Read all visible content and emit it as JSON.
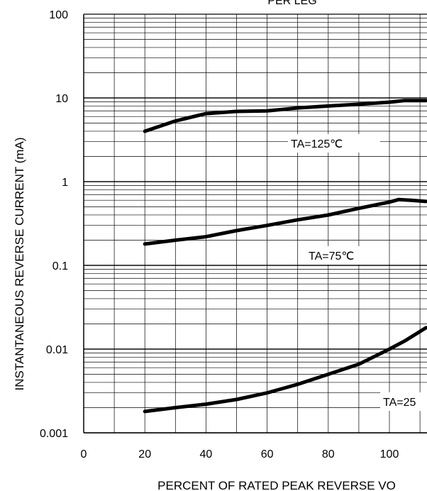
{
  "chart_data": {
    "type": "line",
    "title": "PER LEG",
    "xlabel": "PERCENT OF RATED PEAK REVERSE VO",
    "ylabel": "INSTANTANEOUS REVERSE CURRENT (mA)",
    "xlim": [
      0,
      112
    ],
    "ylim": [
      0.001,
      100
    ],
    "yscale": "log",
    "x_ticks": [
      "0",
      "20",
      "40",
      "60",
      "80",
      "100"
    ],
    "x_tick_values": [
      0,
      20,
      40,
      60,
      80,
      100
    ],
    "y_ticks": [
      "0.001",
      "0.01",
      "0.1",
      "1",
      "10",
      "100"
    ],
    "y_tick_values": [
      0.001,
      0.01,
      0.1,
      1,
      10,
      100
    ],
    "grid": true,
    "series": [
      {
        "name": "TA=125℃",
        "x": [
          20,
          30,
          40,
          50,
          60,
          70,
          80,
          90,
          100,
          105,
          112
        ],
        "y": [
          4.0,
          5.3,
          6.5,
          6.9,
          7.0,
          7.6,
          8.0,
          8.4,
          8.9,
          9.3,
          9.3
        ]
      },
      {
        "name": "TA=75℃",
        "x": [
          20,
          30,
          40,
          50,
          60,
          70,
          80,
          90,
          100,
          103,
          107,
          112
        ],
        "y": [
          0.18,
          0.2,
          0.22,
          0.26,
          0.3,
          0.35,
          0.4,
          0.48,
          0.57,
          0.61,
          0.6,
          0.58
        ]
      },
      {
        "name": "TA=25",
        "x": [
          20,
          30,
          40,
          50,
          60,
          70,
          80,
          90,
          100,
          105,
          112
        ],
        "y": [
          0.0018,
          0.002,
          0.0022,
          0.0025,
          0.003,
          0.0038,
          0.005,
          0.0066,
          0.01,
          0.0125,
          0.018
        ]
      }
    ]
  }
}
